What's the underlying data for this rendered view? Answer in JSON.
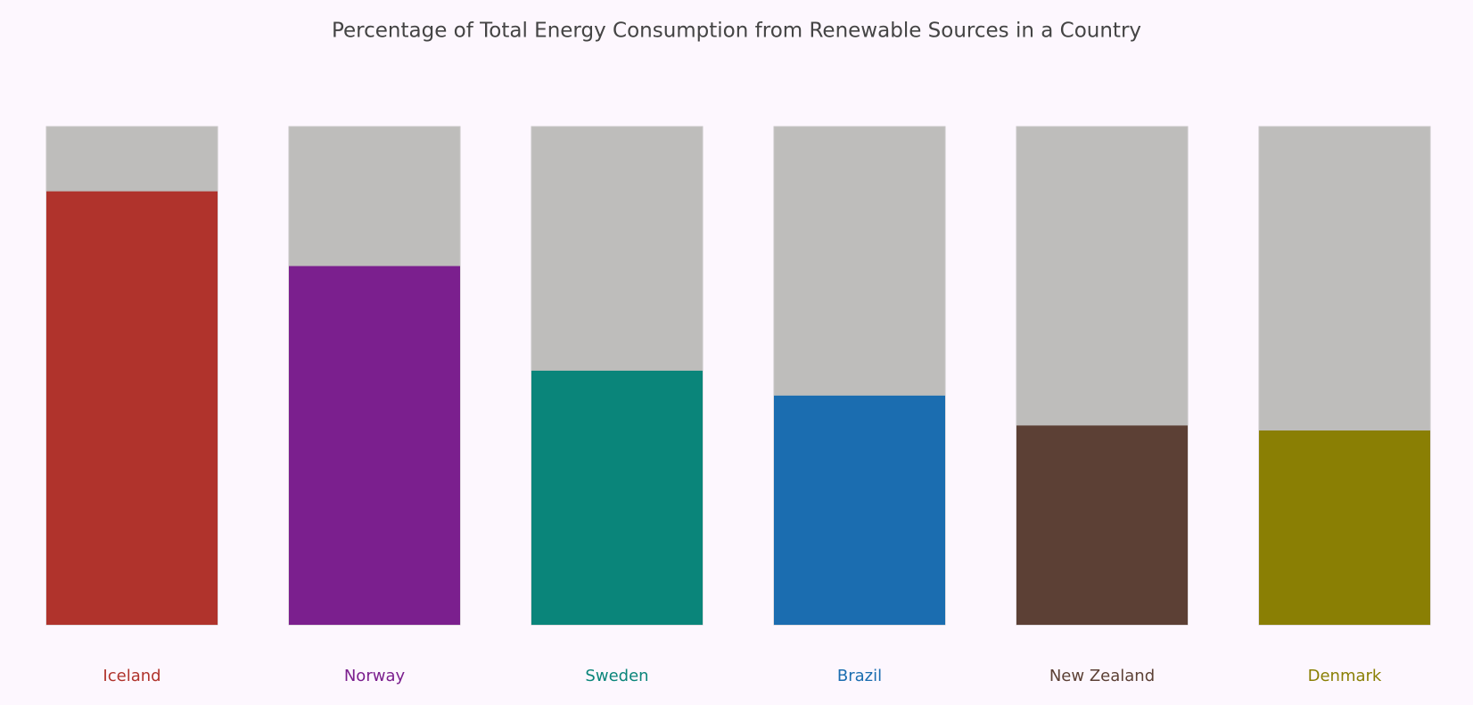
{
  "chart_data": {
    "type": "bar",
    "title": "Percentage of Total Energy Consumption from Renewable Sources in a Country",
    "categories": [
      "Iceland",
      "Norway",
      "Sweden",
      "Brazil",
      "New Zealand",
      "Denmark"
    ],
    "values": [
      87,
      72,
      51,
      46,
      40,
      39
    ],
    "colors": [
      "#b0332c",
      "#7b1f8e",
      "#0a857a",
      "#1b6db0",
      "#5c4035",
      "#8a7f04"
    ],
    "track_color": "#bebdbb",
    "ylim": [
      0,
      100
    ]
  }
}
